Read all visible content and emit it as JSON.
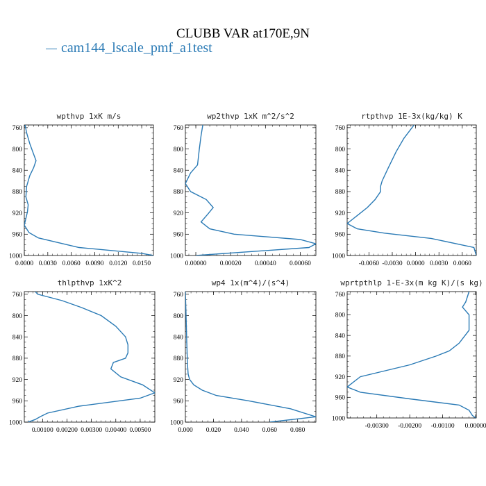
{
  "figure": {
    "title": "CLUBB VAR at170E,9N",
    "legend_label": "cam144_lscale_pmf_a1test",
    "series_color": "#2a7ab5"
  },
  "chart_data": [
    {
      "type": "line",
      "title": "wpthvp  1xK m/s",
      "xlim": [
        0.0,
        0.0165
      ],
      "ylim": [
        1000,
        755
      ],
      "xticks": [
        0.0,
        0.003,
        0.006,
        0.009,
        0.012,
        0.015
      ],
      "xtick_labels": [
        "0.0000",
        "0.0030",
        "0.0060",
        "0.0090",
        "0.0120",
        "0.0150"
      ],
      "yticks": [
        760,
        800,
        840,
        880,
        920,
        960,
        1000
      ],
      "series": [
        {
          "x": [
            0.0001,
            0.0003,
            0.0007,
            0.0012,
            0.0015,
            0.0012,
            0.0007,
            0.0003,
            0.0002,
            0.0005,
            0.0004,
            0.0,
            0.0006,
            0.0018,
            0.007,
            0.015,
            0.0165
          ],
          "y": [
            755,
            770,
            790,
            810,
            822,
            835,
            850,
            870,
            890,
            905,
            918,
            943,
            957,
            967,
            985,
            996,
            1000
          ]
        }
      ]
    },
    {
      "type": "line",
      "title": "wp2thvp  1xK m^2/s^2",
      "xlim": [
        -6e-05,
        0.00069
      ],
      "ylim": [
        1000,
        755
      ],
      "xticks": [
        0.0,
        0.0002,
        0.0004,
        0.0006
      ],
      "xtick_labels": [
        "0.00000",
        "0.00020",
        "0.00040",
        "0.00060"
      ],
      "yticks": [
        760,
        800,
        840,
        880,
        920,
        960,
        1000
      ],
      "series": [
        {
          "x": [
            4e-05,
            3e-05,
            2e-05,
            1e-05,
            -3e-05,
            -6e-05,
            -3e-05,
            6e-05,
            0.0001,
            7e-05,
            3e-05,
            8e-05,
            0.00022,
            0.0006,
            0.00069,
            0.00065,
            0.0
          ],
          "y": [
            755,
            775,
            800,
            830,
            845,
            865,
            880,
            895,
            910,
            922,
            937,
            950,
            960,
            970,
            978,
            985,
            1000
          ]
        }
      ]
    },
    {
      "type": "line",
      "title": "rtpthvp  1E-3x(kg/kg) K",
      "xlim": [
        -0.0088,
        0.0078
      ],
      "ylim": [
        1000,
        755
      ],
      "xticks": [
        -0.006,
        -0.003,
        0.0,
        0.003,
        0.006
      ],
      "xtick_labels": [
        "-0.0060",
        "-0.0030",
        "0.0000",
        "0.0030",
        "0.0060"
      ],
      "yticks": [
        760,
        800,
        840,
        880,
        920,
        960,
        1000
      ],
      "series": [
        {
          "x": [
            -0.0002,
            -0.0015,
            -0.0025,
            -0.0035,
            -0.0043,
            -0.0045,
            -0.0045,
            -0.0052,
            -0.0062,
            -0.0075,
            -0.0088,
            -0.0075,
            -0.004,
            0.002,
            0.0075,
            0.0078
          ],
          "y": [
            755,
            780,
            805,
            835,
            860,
            870,
            880,
            895,
            910,
            925,
            940,
            950,
            958,
            968,
            985,
            1000
          ]
        }
      ]
    },
    {
      "type": "line",
      "title": "thlpthvp  1xK^2",
      "xlim": [
        0.00025,
        0.0056
      ],
      "ylim": [
        1000,
        755
      ],
      "xticks": [
        0.001,
        0.002,
        0.003,
        0.004,
        0.005
      ],
      "xtick_labels": [
        "0.00100",
        "0.00200",
        "0.00300",
        "0.00400",
        "0.00500"
      ],
      "yticks": [
        760,
        800,
        840,
        880,
        920,
        960,
        1000
      ],
      "series": [
        {
          "x": [
            0.0007,
            0.0008,
            0.0018,
            0.0026,
            0.0034,
            0.004,
            0.0044,
            0.0045,
            0.0045,
            0.0044,
            0.0039,
            0.0038,
            0.0042,
            0.0051,
            0.0056,
            0.005,
            0.0025,
            0.0012,
            0.0009,
            0.0007,
            0.0004
          ],
          "y": [
            755,
            760,
            772,
            785,
            800,
            820,
            840,
            855,
            870,
            880,
            888,
            900,
            915,
            930,
            945,
            955,
            970,
            983,
            990,
            995,
            1000
          ]
        }
      ]
    },
    {
      "type": "line",
      "title": "wp4  1x(m^4)/(s^4)",
      "xlim": [
        0.0,
        0.093
      ],
      "ylim": [
        1000,
        755
      ],
      "xticks": [
        0.0,
        0.02,
        0.04,
        0.06,
        0.08
      ],
      "xtick_labels": [
        "0.000",
        "0.020",
        "0.040",
        "0.060",
        "0.080"
      ],
      "yticks": [
        760,
        800,
        840,
        880,
        920,
        960,
        1000
      ],
      "series": [
        {
          "x": [
            0.0,
            0.0005,
            0.001,
            0.0015,
            0.002,
            0.003,
            0.006,
            0.012,
            0.022,
            0.045,
            0.075,
            0.093,
            0.06
          ],
          "y": [
            755,
            800,
            850,
            890,
            910,
            920,
            930,
            940,
            950,
            960,
            975,
            990,
            1000
          ]
        }
      ]
    },
    {
      "type": "line",
      "title": "wprtpthlp  1-E-3x(m kg K)/(s kg)",
      "xlim": [
        -0.0039,
        2e-05
      ],
      "ylim": [
        1000,
        755
      ],
      "xticks": [
        -0.003,
        -0.002,
        -0.001,
        0.0
      ],
      "xtick_labels": [
        "-0.00300",
        "-0.00200",
        "-0.00100",
        "0.00000"
      ],
      "yticks": [
        760,
        800,
        840,
        880,
        920,
        960,
        1000
      ],
      "series": [
        {
          "x": [
            -0.0002,
            -0.0003,
            -0.0004,
            -0.0002,
            -0.0002,
            -0.0005,
            -0.0008,
            -0.0012,
            -0.002,
            -0.0035,
            -0.0039,
            -0.0035,
            -0.002,
            -0.0005,
            -0.0002,
            -0.0001,
            0.0
          ],
          "y": [
            755,
            775,
            785,
            800,
            830,
            855,
            870,
            880,
            897,
            920,
            940,
            950,
            963,
            975,
            985,
            995,
            1000
          ]
        }
      ]
    }
  ]
}
